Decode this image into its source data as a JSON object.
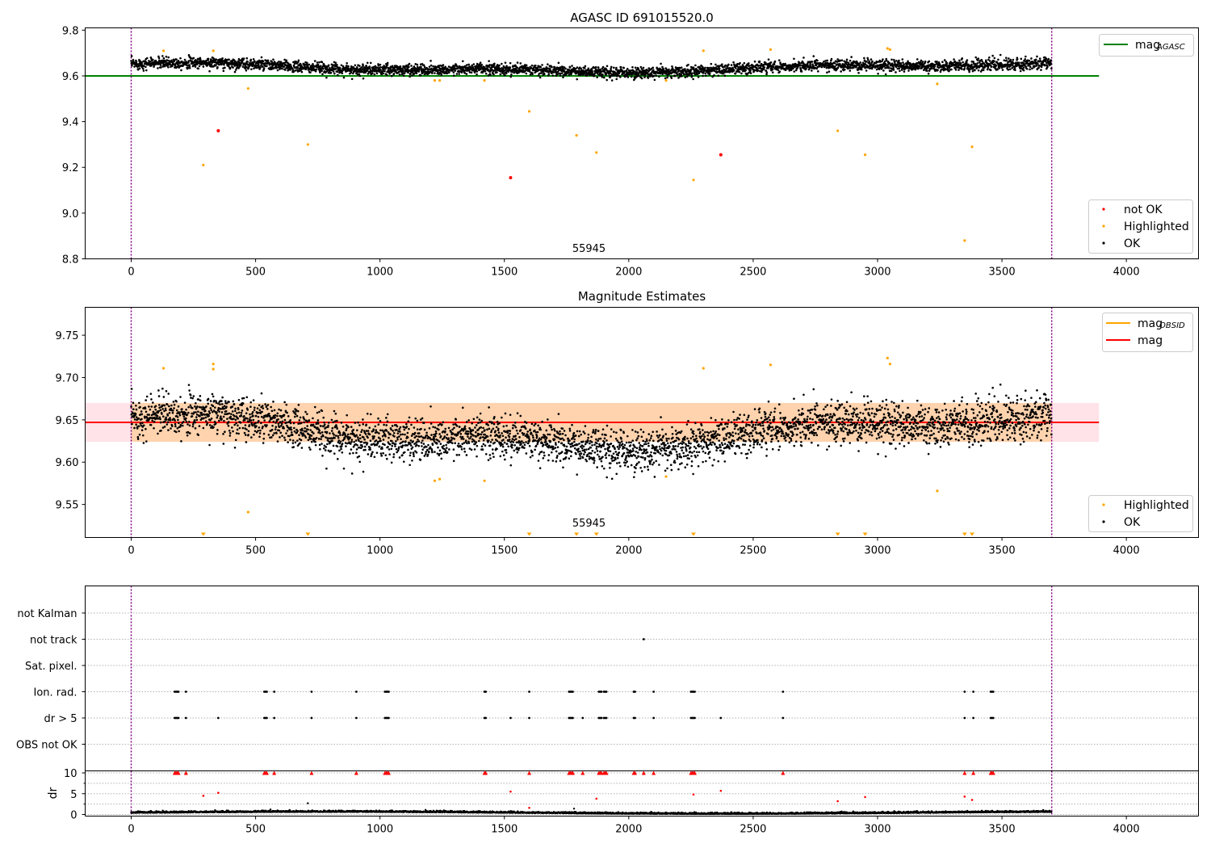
{
  "chart_data": [
    {
      "type": "scatter",
      "title": "AGASC ID 691015520.0",
      "xlim": [
        -185,
        4290
      ],
      "ylim": [
        8.8,
        9.81
      ],
      "xticks": [
        "0",
        "500",
        "1000",
        "1500",
        "2000",
        "2500",
        "3000",
        "3500",
        "4000"
      ],
      "yticks": [
        "9.8",
        "9.6",
        "9.4",
        "9.2",
        "9.0",
        "8.8"
      ],
      "ok_band": {
        "center": 9.648,
        "amplitude": 0.03,
        "noise": 0.012,
        "n_points": 3700
      },
      "agasc_line": {
        "name": "mag_AGASC",
        "color": "#008000",
        "value": 9.6,
        "x_range": [
          -185,
          3890
        ]
      },
      "vlines": [
        0,
        3700
      ],
      "annotation": "55945",
      "annotation_x": 1840,
      "annotation_y": 8.83,
      "not_ok": [
        [
          350,
          9.36
        ],
        [
          1525,
          9.155
        ],
        [
          2370,
          9.255
        ]
      ],
      "highlighted": [
        [
          130,
          9.71
        ],
        [
          330,
          9.71
        ],
        [
          470,
          9.545
        ],
        [
          290,
          9.21
        ],
        [
          710,
          9.3
        ],
        [
          1220,
          9.58
        ],
        [
          1240,
          9.58
        ],
        [
          1420,
          9.58
        ],
        [
          1600,
          9.445
        ],
        [
          1790,
          9.34
        ],
        [
          1870,
          9.265
        ],
        [
          2150,
          9.58
        ],
        [
          2260,
          9.145
        ],
        [
          2300,
          9.71
        ],
        [
          2570,
          9.715
        ],
        [
          2840,
          9.36
        ],
        [
          2950,
          9.255
        ],
        [
          3040,
          9.72
        ],
        [
          3050,
          9.715
        ],
        [
          3240,
          9.565
        ],
        [
          3350,
          8.88
        ],
        [
          3380,
          9.29
        ]
      ],
      "legend_top": [
        {
          "label": "mag",
          "sub": "AGASC",
          "color": "#008000"
        }
      ],
      "legend_bottom": [
        {
          "label": "not OK",
          "color": "#ff0000"
        },
        {
          "label": "Highlighted",
          "color": "#ffa500"
        },
        {
          "label": "OK",
          "color": "#000000"
        }
      ]
    },
    {
      "type": "scatter",
      "title": "Magnitude Estimates",
      "xlim": [
        -185,
        4290
      ],
      "ylim": [
        9.511,
        9.783
      ],
      "xticks": [
        "0",
        "500",
        "1000",
        "1500",
        "2000",
        "2500",
        "3000",
        "3500",
        "4000"
      ],
      "yticks": [
        "9.75",
        "9.70",
        "9.65",
        "9.60",
        "9.55"
      ],
      "ok_band": {
        "center": 9.648,
        "amplitude": 0.03,
        "noise": 0.012,
        "n_points": 3700
      },
      "mag_line": {
        "name": "mag",
        "color": "#ff0000",
        "value": 9.647,
        "x_range": [
          -185,
          3890
        ]
      },
      "mag_band": {
        "low": 9.624,
        "high": 9.67,
        "color": "#ffc0cb"
      },
      "obsid_band": {
        "low": 9.624,
        "high": 9.67,
        "x_range": [
          0,
          3700
        ],
        "color": "#ffa500"
      },
      "vlines": [
        0,
        3700
      ],
      "annotation": "55945",
      "annotation_x": 1840,
      "annotation_y": 9.524,
      "highlighted": [
        [
          130,
          9.711
        ],
        [
          330,
          9.716
        ],
        [
          330,
          9.71
        ],
        [
          470,
          9.541
        ],
        [
          1220,
          9.578
        ],
        [
          1240,
          9.58
        ],
        [
          1420,
          9.578
        ],
        [
          2150,
          9.583
        ],
        [
          2300,
          9.711
        ],
        [
          2570,
          9.715
        ],
        [
          3040,
          9.723
        ],
        [
          3050,
          9.716
        ],
        [
          3240,
          9.566
        ]
      ],
      "offscale_markers": [
        290,
        710,
        1600,
        1790,
        1870,
        2260,
        2840,
        2950,
        3350,
        3380
      ],
      "legend_top": [
        {
          "label": "mag",
          "sub": "OBSID",
          "color": "#ffa500"
        },
        {
          "label": "mag",
          "sub": "",
          "color": "#ff0000"
        }
      ],
      "legend_bottom": [
        {
          "label": "Highlighted",
          "color": "#ffa500"
        },
        {
          "label": "OK",
          "color": "#000000"
        }
      ]
    },
    {
      "type": "scatter",
      "title": "",
      "xlim": [
        -185,
        4290
      ],
      "flag_rows": [
        "not Kalman",
        "not track",
        "Sat. pixel.",
        "Ion. rad.",
        "dr > 5",
        "OBS not OK"
      ],
      "flags": {
        "not track": [
          2060
        ],
        "Ion. rad.": [
          175,
          180,
          185,
          190,
          220,
          535,
          540,
          545,
          575,
          725,
          905,
          1020,
          1025,
          1030,
          1035,
          1420,
          1425,
          1600,
          1760,
          1765,
          1770,
          1775,
          1880,
          1885,
          1890,
          1900,
          1905,
          1910,
          2020,
          2025,
          2100,
          2250,
          2255,
          2260,
          2265,
          2620,
          3350,
          3385,
          3455,
          3460,
          3465
        ],
        "dr > 5": [
          175,
          180,
          185,
          190,
          220,
          350,
          535,
          540,
          545,
          575,
          725,
          905,
          1020,
          1025,
          1030,
          1035,
          1420,
          1425,
          1525,
          1600,
          1760,
          1765,
          1770,
          1775,
          1815,
          1880,
          1885,
          1890,
          1900,
          1905,
          1910,
          2020,
          2025,
          2100,
          2250,
          2255,
          2260,
          2265,
          2370,
          2620,
          3350,
          3385,
          3455,
          3460,
          3465
        ]
      },
      "dr_panel": {
        "ylabel": "dr",
        "ylim": [
          0,
          10
        ],
        "yticks": [
          "10",
          "5",
          "0"
        ],
        "xticks": [
          "0",
          "500",
          "1000",
          "1500",
          "2000",
          "2500",
          "3000",
          "3500",
          "4000"
        ],
        "red_points": [
          [
            290,
            4.5
          ],
          [
            350,
            5.2
          ],
          [
            1525,
            5.5
          ],
          [
            1600,
            1.6
          ],
          [
            1870,
            3.8
          ],
          [
            2260,
            4.8
          ],
          [
            2370,
            5.7
          ],
          [
            2840,
            3.2
          ],
          [
            2950,
            4.2
          ],
          [
            3350,
            4.3
          ],
          [
            3380,
            3.5
          ]
        ],
        "black_extra": [
          [
            710,
            2.7
          ],
          [
            560,
            1.2
          ],
          [
            1780,
            1.4
          ]
        ],
        "clipped_at_10": [
          175,
          180,
          185,
          190,
          220,
          535,
          540,
          545,
          575,
          725,
          905,
          1020,
          1025,
          1030,
          1035,
          1420,
          1425,
          1600,
          1760,
          1765,
          1770,
          1775,
          1815,
          1880,
          1885,
          1890,
          1900,
          1905,
          1910,
          2020,
          2025,
          2060,
          2100,
          2250,
          2255,
          2260,
          2265,
          2620,
          3350,
          3385,
          3455,
          3460,
          3465
        ],
        "baseline": {
          "mean": 0.35,
          "noise": 0.22
        }
      },
      "vlines": [
        0,
        3700
      ]
    }
  ]
}
